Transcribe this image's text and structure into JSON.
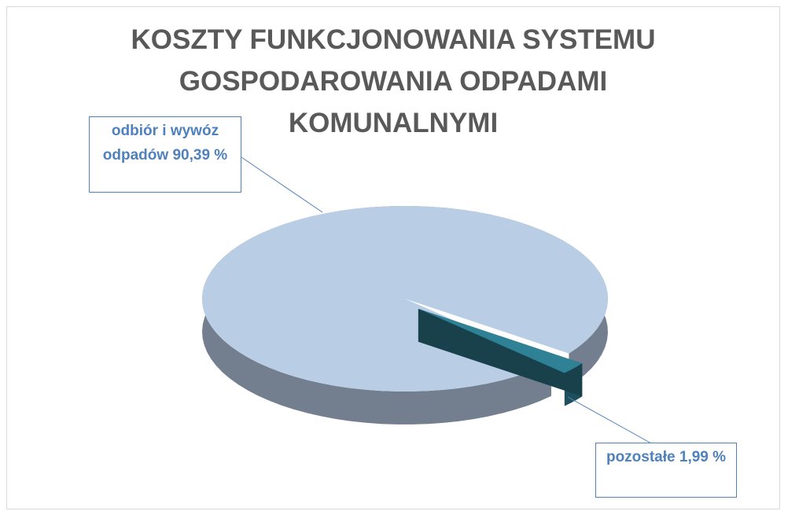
{
  "chart_data": {
    "type": "pie",
    "title": "KOSZTY FUNKCJONOWANIA SYSTEMU GOSPODAROWANIA ODPADAMI KOMUNALNYMI",
    "categories": [
      "odbiór i wywóz odpadów",
      "pozostałe"
    ],
    "values": [
      90.39,
      1.99
    ],
    "value_labels": [
      "90,39 %",
      "1,99 %"
    ],
    "colors": [
      "#b9cde5",
      "#2f8195"
    ]
  }
}
